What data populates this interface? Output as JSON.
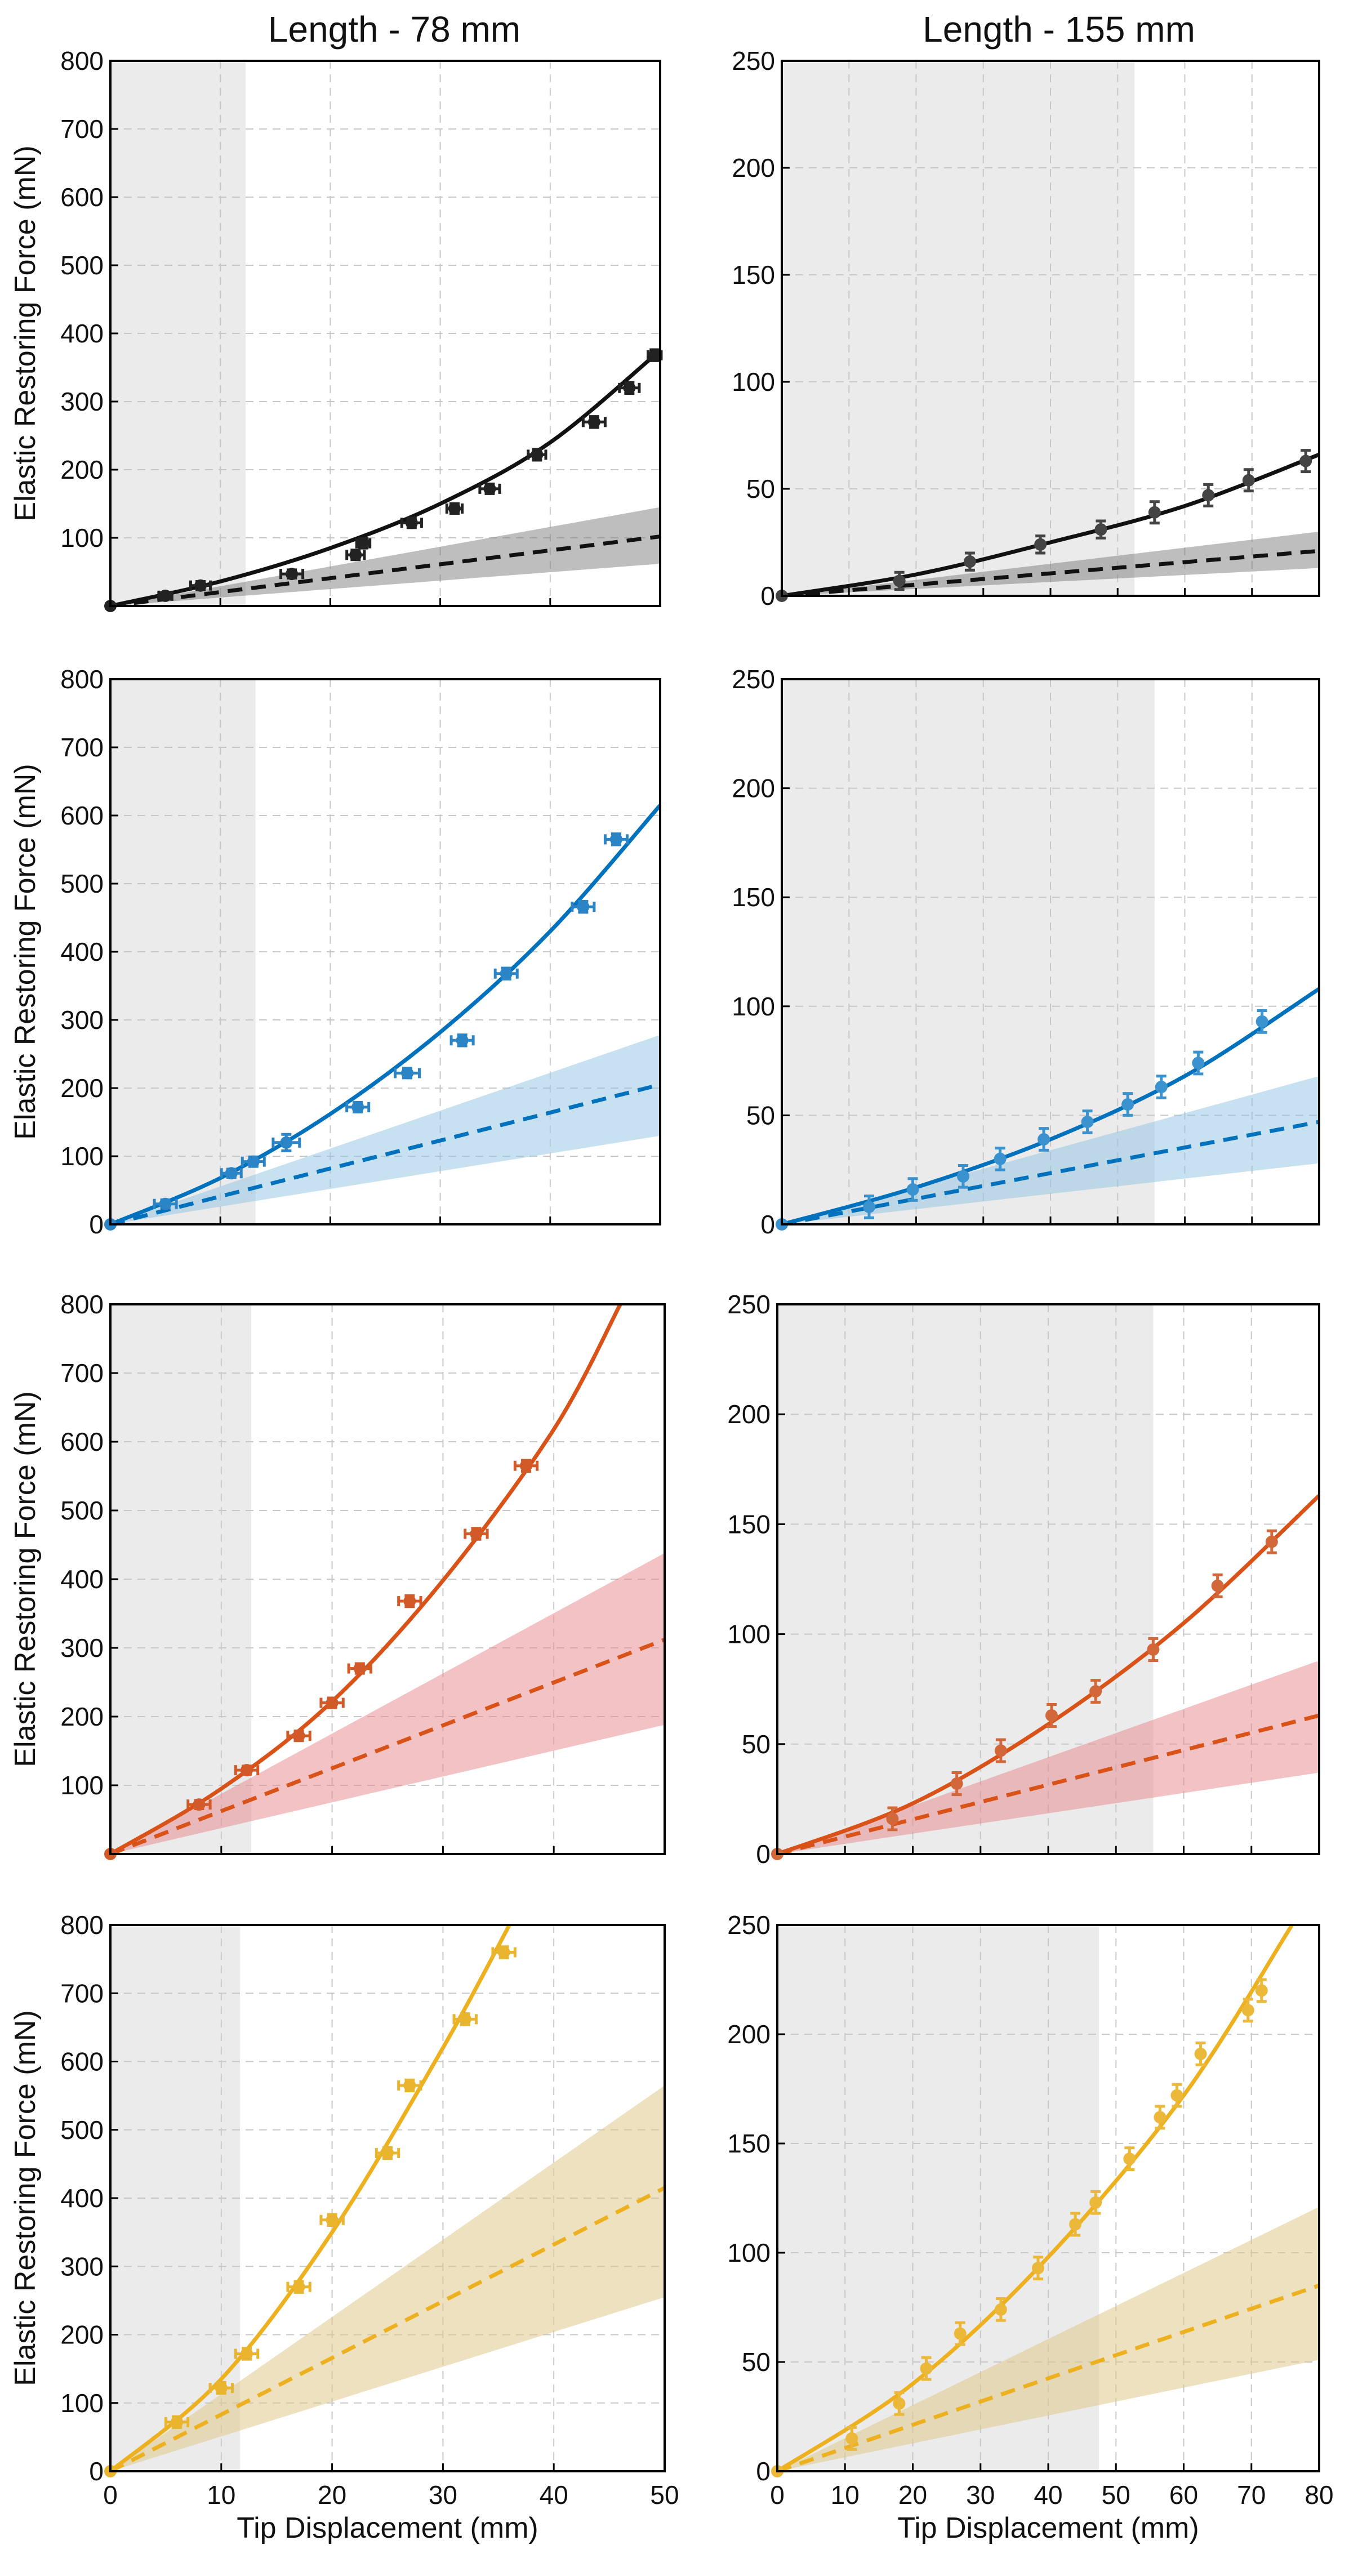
{
  "figure": {
    "column_titles": [
      "Length - 78 mm",
      "Length - 155 mm"
    ],
    "ylabel": "Elastic Restoring Force (mN)",
    "xlabel": "Tip Displacement (mm)"
  },
  "chart_data": [
    {
      "type": "line",
      "id": "78-black",
      "color": "#111111",
      "band_color": "#6f6f6f",
      "band_opacity": 0.45,
      "marker_color": "#222222",
      "xlim": [
        0,
        50
      ],
      "ylim": [
        0,
        800
      ],
      "xticks": [
        0,
        10,
        20,
        30,
        40,
        50
      ],
      "yticks": [
        100,
        200,
        300,
        400,
        500,
        600,
        700,
        800
      ],
      "show_x_tick_labels": false,
      "xlabel": "",
      "ylabel": "Elastic Restoring Force (mN)",
      "grid": true,
      "shaded_region": [
        0,
        12.3
      ],
      "fit_curve": {
        "x": [
          0,
          10,
          20,
          30,
          40,
          50
        ],
        "y": [
          0,
          36,
          85,
          150,
          240,
          375
        ]
      },
      "linear_model": {
        "x": [
          0,
          50
        ],
        "y": [
          0,
          102
        ],
        "band_low": [
          0,
          62
        ],
        "band_high": [
          0,
          145
        ]
      },
      "points": {
        "x": [
          0,
          5,
          8.2,
          16.5,
          22.3,
          23,
          27.4,
          31.3,
          34.5,
          38.8,
          44,
          47.2,
          49.5
        ],
        "y": [
          0,
          15,
          30,
          47,
          75,
          92,
          122,
          143,
          172,
          222,
          270,
          320,
          368
        ],
        "x_err": [
          0,
          0.6,
          0.9,
          1,
          0.8,
          0.6,
          0.9,
          0.7,
          0.9,
          0.8,
          1,
          0.9,
          0.6
        ],
        "y_err": [
          0,
          5,
          6,
          6,
          7,
          7,
          7,
          7,
          7,
          8,
          8,
          8,
          8
        ]
      }
    },
    {
      "type": "line",
      "id": "155-black",
      "color": "#111111",
      "band_color": "#6f6f6f",
      "band_opacity": 0.45,
      "marker_color": "#444444",
      "xlim": [
        0,
        80
      ],
      "ylim": [
        0,
        250
      ],
      "xticks": [
        0,
        10,
        20,
        30,
        40,
        50,
        60,
        70,
        80
      ],
      "yticks": [
        0,
        50,
        100,
        150,
        200,
        250
      ],
      "show_x_tick_labels": false,
      "xlabel": "",
      "ylabel": "",
      "grid": true,
      "shaded_region": [
        0,
        52.5
      ],
      "fit_curve": {
        "x": [
          0,
          20,
          40,
          60,
          80
        ],
        "y": [
          0,
          10,
          25,
          42,
          66
        ]
      },
      "linear_model": {
        "x": [
          0,
          80
        ],
        "y": [
          0,
          21
        ],
        "band_low": [
          0,
          13
        ],
        "band_high": [
          0,
          30
        ]
      },
      "points": {
        "x": [
          0,
          17.5,
          28,
          38.5,
          47.5,
          55.5,
          63.5,
          69.5,
          78
        ],
        "y": [
          0,
          7,
          16,
          24,
          31,
          39,
          47,
          54,
          63
        ],
        "x_err": [
          0,
          0,
          0,
          0,
          0,
          0,
          0,
          0,
          0
        ],
        "y_err": [
          0,
          4,
          4,
          4,
          4,
          5,
          5,
          5,
          5
        ]
      }
    },
    {
      "type": "line",
      "id": "78-blue",
      "color": "#0072bd",
      "band_color": "#8fc3e4",
      "band_opacity": 0.5,
      "marker_color": "#2b84c6",
      "xlim": [
        0,
        50
      ],
      "ylim": [
        0,
        800
      ],
      "xticks": [
        0,
        10,
        20,
        30,
        40,
        50
      ],
      "yticks": [
        0,
        100,
        200,
        300,
        400,
        500,
        600,
        700,
        800
      ],
      "show_x_tick_labels": false,
      "xlabel": "",
      "ylabel": "Elastic Restoring Force (mN)",
      "grid": true,
      "shaded_region": [
        0,
        13.2
      ],
      "fit_curve": {
        "x": [
          0,
          10,
          20,
          30,
          40,
          50
        ],
        "y": [
          0,
          68,
          162,
          282,
          430,
          615
        ]
      },
      "linear_model": {
        "x": [
          0,
          50
        ],
        "y": [
          0,
          205
        ],
        "band_low": [
          0,
          130
        ],
        "band_high": [
          0,
          278
        ]
      },
      "points": {
        "x": [
          0,
          5,
          11,
          13,
          16,
          22.5,
          27,
          32,
          36,
          43,
          46
        ],
        "y": [
          0,
          30,
          75,
          92,
          120,
          172,
          222,
          270,
          368,
          466,
          565
        ],
        "x_err": [
          0,
          1,
          0.9,
          1,
          1.2,
          1,
          1.1,
          1,
          1,
          1,
          1
        ],
        "y_err": [
          0,
          6,
          6,
          7,
          12,
          7,
          7,
          8,
          8,
          8,
          8
        ]
      }
    },
    {
      "type": "line",
      "id": "155-blue",
      "color": "#0072bd",
      "band_color": "#8fc3e4",
      "band_opacity": 0.5,
      "marker_color": "#3a92cf",
      "xlim": [
        0,
        80
      ],
      "ylim": [
        0,
        250
      ],
      "xticks": [
        0,
        10,
        20,
        30,
        40,
        50,
        60,
        70,
        80
      ],
      "yticks": [
        0,
        50,
        100,
        150,
        200,
        250
      ],
      "show_x_tick_labels": false,
      "xlabel": "",
      "ylabel": "",
      "grid": true,
      "shaded_region": [
        0,
        55.5
      ],
      "fit_curve": {
        "x": [
          0,
          20,
          40,
          60,
          80
        ],
        "y": [
          0,
          17,
          39,
          68,
          108
        ]
      },
      "linear_model": {
        "x": [
          0,
          80
        ],
        "y": [
          0,
          47
        ],
        "band_low": [
          0,
          28
        ],
        "band_high": [
          0,
          68
        ]
      },
      "points": {
        "x": [
          0,
          13,
          19.5,
          27,
          32.5,
          39,
          45.5,
          51.5,
          56.5,
          62,
          71.5
        ],
        "y": [
          0,
          8,
          16,
          22,
          30,
          39,
          47,
          55,
          63,
          74,
          93
        ],
        "x_err": [
          0,
          0,
          0,
          0,
          0,
          0,
          0,
          0,
          0,
          0,
          0
        ],
        "y_err": [
          0,
          5,
          5,
          5,
          5,
          5,
          5,
          5,
          5,
          5,
          5
        ]
      }
    },
    {
      "type": "line",
      "id": "78-orange",
      "color": "#d95319",
      "band_color": "#e7858a",
      "band_opacity": 0.5,
      "marker_color": "#d25a28",
      "xlim": [
        0,
        50
      ],
      "ylim": [
        0,
        800
      ],
      "xticks": [
        0,
        10,
        20,
        30,
        40,
        50
      ],
      "yticks": [
        100,
        200,
        300,
        400,
        500,
        600,
        700,
        800
      ],
      "show_x_tick_labels": false,
      "xlabel": "",
      "ylabel": "Elastic Restoring Force (mN)",
      "grid": true,
      "shaded_region": [
        0,
        12.7
      ],
      "fit_curve": {
        "x": [
          0,
          10,
          20,
          30,
          40,
          46
        ],
        "y": [
          0,
          95,
          222,
          398,
          618,
          800
        ]
      },
      "linear_model": {
        "x": [
          0,
          50
        ],
        "y": [
          0,
          312
        ],
        "band_low": [
          0,
          188
        ],
        "band_high": [
          0,
          438
        ]
      },
      "points": {
        "x": [
          0,
          8,
          12.3,
          17,
          20,
          22.5,
          27,
          33,
          37.5
        ],
        "y": [
          0,
          72,
          122,
          172,
          220,
          270,
          368,
          466,
          565
        ],
        "x_err": [
          0,
          1,
          1,
          1,
          1,
          1,
          1,
          1,
          1
        ],
        "y_err": [
          0,
          6,
          6,
          7,
          7,
          7,
          8,
          8,
          8
        ]
      }
    },
    {
      "type": "line",
      "id": "155-orange",
      "color": "#d95319",
      "band_color": "#e7858a",
      "band_opacity": 0.5,
      "marker_color": "#d2683a",
      "xlim": [
        0,
        80
      ],
      "ylim": [
        0,
        250
      ],
      "xticks": [
        0,
        10,
        20,
        30,
        40,
        50,
        60,
        70,
        80
      ],
      "yticks": [
        0,
        50,
        100,
        150,
        200,
        250
      ],
      "show_x_tick_labels": false,
      "xlabel": "",
      "ylabel": "",
      "grid": true,
      "shaded_region": [
        0,
        55.5
      ],
      "fit_curve": {
        "x": [
          0,
          20,
          40,
          60,
          80
        ],
        "y": [
          0,
          23,
          59,
          105,
          163
        ]
      },
      "linear_model": {
        "x": [
          0,
          80
        ],
        "y": [
          0,
          63
        ],
        "band_low": [
          0,
          37
        ],
        "band_high": [
          0,
          88
        ]
      },
      "points": {
        "x": [
          0,
          17,
          26.5,
          33,
          40.5,
          47,
          55.5,
          65,
          73
        ],
        "y": [
          0,
          16,
          32,
          47,
          63,
          74,
          93,
          122,
          142
        ],
        "x_err": [
          0,
          0,
          0,
          0,
          0,
          0,
          0,
          0,
          0
        ],
        "y_err": [
          0,
          5,
          5,
          5,
          5,
          5,
          5,
          5,
          5
        ]
      }
    },
    {
      "type": "line",
      "id": "78-yellow",
      "color": "#edb120",
      "band_color": "#dfc88a",
      "band_opacity": 0.55,
      "marker_color": "#e9b52f",
      "xlim": [
        0,
        50
      ],
      "ylim": [
        0,
        800
      ],
      "xticks": [
        0,
        10,
        20,
        30,
        40,
        50
      ],
      "yticks": [
        0,
        100,
        200,
        300,
        400,
        500,
        600,
        700,
        800
      ],
      "show_x_tick_labels": true,
      "xlabel": "Tip Displacement (mm)",
      "ylabel": "Elastic Restoring Force (mN)",
      "grid": true,
      "shaded_region": [
        0,
        11.7
      ],
      "fit_curve": {
        "x": [
          0,
          10,
          20,
          30,
          36
        ],
        "y": [
          0,
          135,
          350,
          620,
          800
        ]
      },
      "linear_model": {
        "x": [
          0,
          50
        ],
        "y": [
          0,
          415
        ],
        "band_low": [
          0,
          255
        ],
        "band_high": [
          0,
          565
        ]
      },
      "points": {
        "x": [
          0,
          6,
          10,
          12.3,
          17,
          20,
          25,
          27,
          32,
          35.5
        ],
        "y": [
          0,
          72,
          122,
          172,
          270,
          368,
          466,
          565,
          662,
          760
        ],
        "x_err": [
          0,
          1,
          1,
          1,
          1,
          1,
          1,
          1,
          1,
          1
        ],
        "y_err": [
          0,
          8,
          8,
          8,
          8,
          8,
          8,
          8,
          8,
          8
        ]
      }
    },
    {
      "type": "line",
      "id": "155-yellow",
      "color": "#edb120",
      "band_color": "#dfc88a",
      "band_opacity": 0.55,
      "marker_color": "#ecb83a",
      "xlim": [
        0,
        80
      ],
      "ylim": [
        0,
        250
      ],
      "xticks": [
        0,
        10,
        20,
        30,
        40,
        50,
        60,
        70,
        80
      ],
      "yticks": [
        0,
        50,
        100,
        150,
        200,
        250
      ],
      "show_x_tick_labels": true,
      "xlabel": "Tip Displacement (mm)",
      "ylabel": "",
      "grid": true,
      "shaded_region": [
        0,
        47.5
      ],
      "fit_curve": {
        "x": [
          0,
          20,
          40,
          60,
          76
        ],
        "y": [
          0,
          40,
          98,
          172,
          250
        ]
      },
      "linear_model": {
        "x": [
          0,
          80
        ],
        "y": [
          0,
          85
        ],
        "band_low": [
          0,
          51
        ],
        "band_high": [
          0,
          121
        ]
      },
      "points": {
        "x": [
          0,
          11,
          18,
          22,
          27,
          33,
          38.5,
          44,
          47,
          52,
          56.5,
          59,
          62.5,
          69.5,
          71.5
        ],
        "y": [
          0,
          15,
          31,
          47,
          63,
          74,
          93,
          113,
          123,
          143,
          162,
          172,
          191,
          211,
          220
        ],
        "x_err": [
          0,
          0,
          0,
          0,
          0,
          0,
          0,
          0,
          0,
          0,
          0,
          0,
          0,
          0,
          0
        ],
        "y_err": [
          0,
          5,
          5,
          5,
          5,
          5,
          5,
          5,
          5,
          5,
          5,
          5,
          5,
          5,
          5
        ]
      }
    }
  ]
}
